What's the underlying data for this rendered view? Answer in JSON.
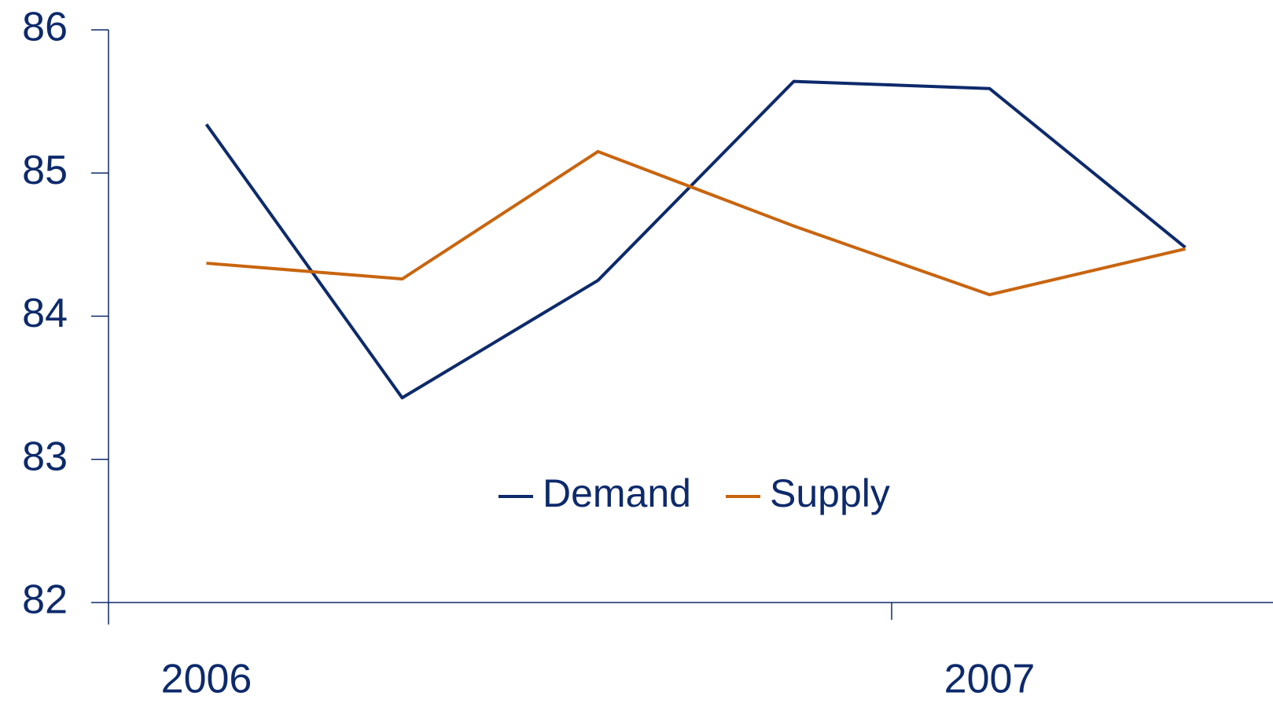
{
  "chart_data": {
    "type": "line",
    "categories": [
      "2006",
      null,
      null,
      null,
      "2007",
      null
    ],
    "series": [
      {
        "name": "Demand",
        "color": "#0d2a6b",
        "values": [
          85.34,
          83.43,
          84.25,
          85.64,
          85.59,
          84.48
        ]
      },
      {
        "name": "Supply",
        "color": "#c8650f",
        "values": [
          84.37,
          84.26,
          85.15,
          84.63,
          84.15,
          84.47
        ]
      }
    ],
    "ylim": [
      82,
      86
    ],
    "yticks": [
      82,
      83,
      84,
      85,
      86
    ],
    "grid": false,
    "legend": "center"
  }
}
